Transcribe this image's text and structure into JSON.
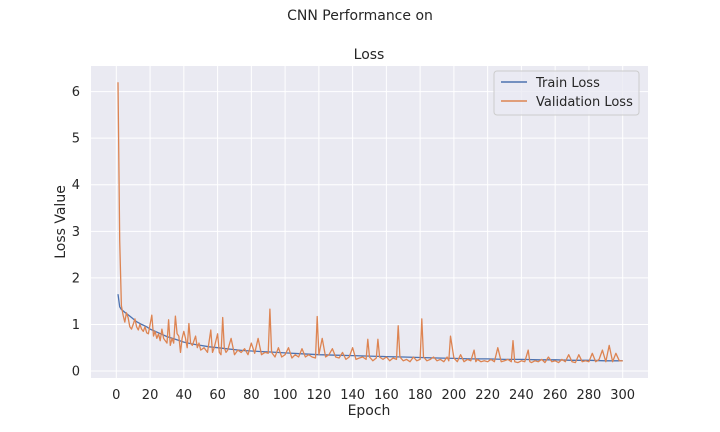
{
  "figure": {
    "suptitle": "CNN Performance on"
  },
  "chart_data": {
    "type": "line",
    "title": "Loss",
    "xlabel": "Epoch",
    "ylabel": "Loss Value",
    "xlim": [
      -15,
      315
    ],
    "ylim": [
      -0.15,
      6.55
    ],
    "xticks": [
      0,
      20,
      40,
      60,
      80,
      100,
      120,
      140,
      160,
      180,
      200,
      220,
      240,
      260,
      280,
      300
    ],
    "yticks": [
      0,
      1,
      2,
      3,
      4,
      5,
      6
    ],
    "grid": true,
    "legend_position": "top-right",
    "series": [
      {
        "name": "Train Loss",
        "color": "#4c72b0",
        "x": [
          1,
          2,
          3,
          5,
          8,
          10,
          12,
          15,
          18,
          20,
          25,
          30,
          35,
          40,
          45,
          50,
          55,
          60,
          65,
          70,
          75,
          80,
          85,
          90,
          95,
          100,
          110,
          120,
          130,
          140,
          150,
          160,
          170,
          180,
          190,
          200,
          210,
          220,
          230,
          240,
          250,
          260,
          270,
          280,
          290,
          300
        ],
        "values": [
          1.65,
          1.38,
          1.32,
          1.26,
          1.18,
          1.12,
          1.06,
          1.0,
          0.95,
          0.9,
          0.82,
          0.74,
          0.68,
          0.62,
          0.58,
          0.55,
          0.52,
          0.5,
          0.48,
          0.46,
          0.44,
          0.43,
          0.42,
          0.41,
          0.4,
          0.39,
          0.37,
          0.35,
          0.34,
          0.33,
          0.32,
          0.31,
          0.3,
          0.29,
          0.28,
          0.27,
          0.26,
          0.26,
          0.25,
          0.25,
          0.24,
          0.24,
          0.23,
          0.23,
          0.22,
          0.22
        ]
      },
      {
        "name": "Validation Loss",
        "color": "#dd8452",
        "x": [
          1,
          2,
          3,
          4,
          5,
          6,
          7,
          8,
          9,
          10,
          11,
          12,
          13,
          14,
          15,
          16,
          17,
          18,
          19,
          20,
          21,
          22,
          23,
          24,
          25,
          26,
          27,
          28,
          29,
          30,
          31,
          32,
          33,
          34,
          35,
          36,
          37,
          38,
          39,
          40,
          41,
          42,
          43,
          44,
          45,
          46,
          47,
          48,
          49,
          50,
          52,
          54,
          56,
          57,
          58,
          60,
          61,
          62,
          63,
          64,
          65,
          66,
          68,
          70,
          72,
          74,
          76,
          78,
          80,
          82,
          84,
          86,
          88,
          90,
          91,
          92,
          94,
          96,
          98,
          100,
          102,
          104,
          106,
          108,
          110,
          112,
          114,
          116,
          118,
          119,
          120,
          122,
          124,
          126,
          128,
          130,
          132,
          134,
          136,
          138,
          140,
          142,
          144,
          146,
          148,
          149,
          150,
          152,
          154,
          155,
          156,
          158,
          160,
          162,
          164,
          166,
          167,
          168,
          170,
          172,
          174,
          176,
          178,
          180,
          181,
          182,
          184,
          186,
          188,
          190,
          192,
          194,
          196,
          197,
          198,
          200,
          202,
          204,
          206,
          208,
          210,
          212,
          213,
          214,
          216,
          218,
          220,
          222,
          224,
          226,
          228,
          230,
          232,
          234,
          235,
          236,
          238,
          240,
          242,
          244,
          245,
          246,
          248,
          250,
          252,
          254,
          256,
          258,
          260,
          262,
          264,
          266,
          268,
          270,
          272,
          274,
          276,
          278,
          280,
          282,
          284,
          286,
          288,
          290,
          292,
          294,
          296,
          298,
          300
        ],
        "values": [
          6.2,
          2.8,
          1.4,
          1.2,
          1.05,
          1.25,
          1.15,
          0.95,
          0.9,
          1.0,
          1.12,
          0.95,
          0.88,
          1.0,
          0.9,
          0.85,
          0.95,
          0.82,
          0.8,
          1.0,
          1.2,
          0.75,
          0.85,
          0.7,
          0.8,
          0.65,
          0.9,
          0.7,
          0.65,
          0.6,
          1.1,
          0.55,
          0.7,
          0.6,
          1.18,
          0.8,
          0.75,
          0.4,
          0.7,
          0.85,
          0.7,
          0.5,
          1.02,
          0.6,
          0.55,
          0.65,
          0.75,
          0.5,
          0.6,
          0.45,
          0.5,
          0.4,
          0.88,
          0.4,
          0.5,
          0.8,
          0.4,
          0.35,
          1.15,
          0.5,
          0.4,
          0.45,
          0.7,
          0.35,
          0.45,
          0.4,
          0.48,
          0.35,
          0.6,
          0.38,
          0.7,
          0.35,
          0.4,
          0.38,
          1.33,
          0.4,
          0.3,
          0.5,
          0.3,
          0.35,
          0.5,
          0.28,
          0.35,
          0.3,
          0.48,
          0.3,
          0.35,
          0.3,
          0.28,
          1.17,
          0.35,
          0.7,
          0.3,
          0.35,
          0.48,
          0.3,
          0.28,
          0.4,
          0.25,
          0.3,
          0.5,
          0.25,
          0.28,
          0.3,
          0.25,
          0.68,
          0.3,
          0.22,
          0.28,
          0.68,
          0.3,
          0.25,
          0.3,
          0.22,
          0.28,
          0.25,
          0.97,
          0.3,
          0.22,
          0.25,
          0.2,
          0.3,
          0.22,
          0.25,
          1.12,
          0.3,
          0.22,
          0.25,
          0.3,
          0.22,
          0.25,
          0.2,
          0.3,
          0.22,
          0.75,
          0.28,
          0.2,
          0.35,
          0.2,
          0.25,
          0.22,
          0.45,
          0.2,
          0.25,
          0.2,
          0.22,
          0.2,
          0.25,
          0.2,
          0.5,
          0.2,
          0.22,
          0.25,
          0.2,
          0.65,
          0.2,
          0.18,
          0.22,
          0.2,
          0.45,
          0.2,
          0.18,
          0.22,
          0.2,
          0.25,
          0.18,
          0.3,
          0.2,
          0.22,
          0.18,
          0.25,
          0.2,
          0.35,
          0.2,
          0.18,
          0.35,
          0.2,
          0.22,
          0.2,
          0.38,
          0.2,
          0.25,
          0.45,
          0.2,
          0.55,
          0.2,
          0.38,
          0.22,
          0.22
        ]
      }
    ]
  }
}
